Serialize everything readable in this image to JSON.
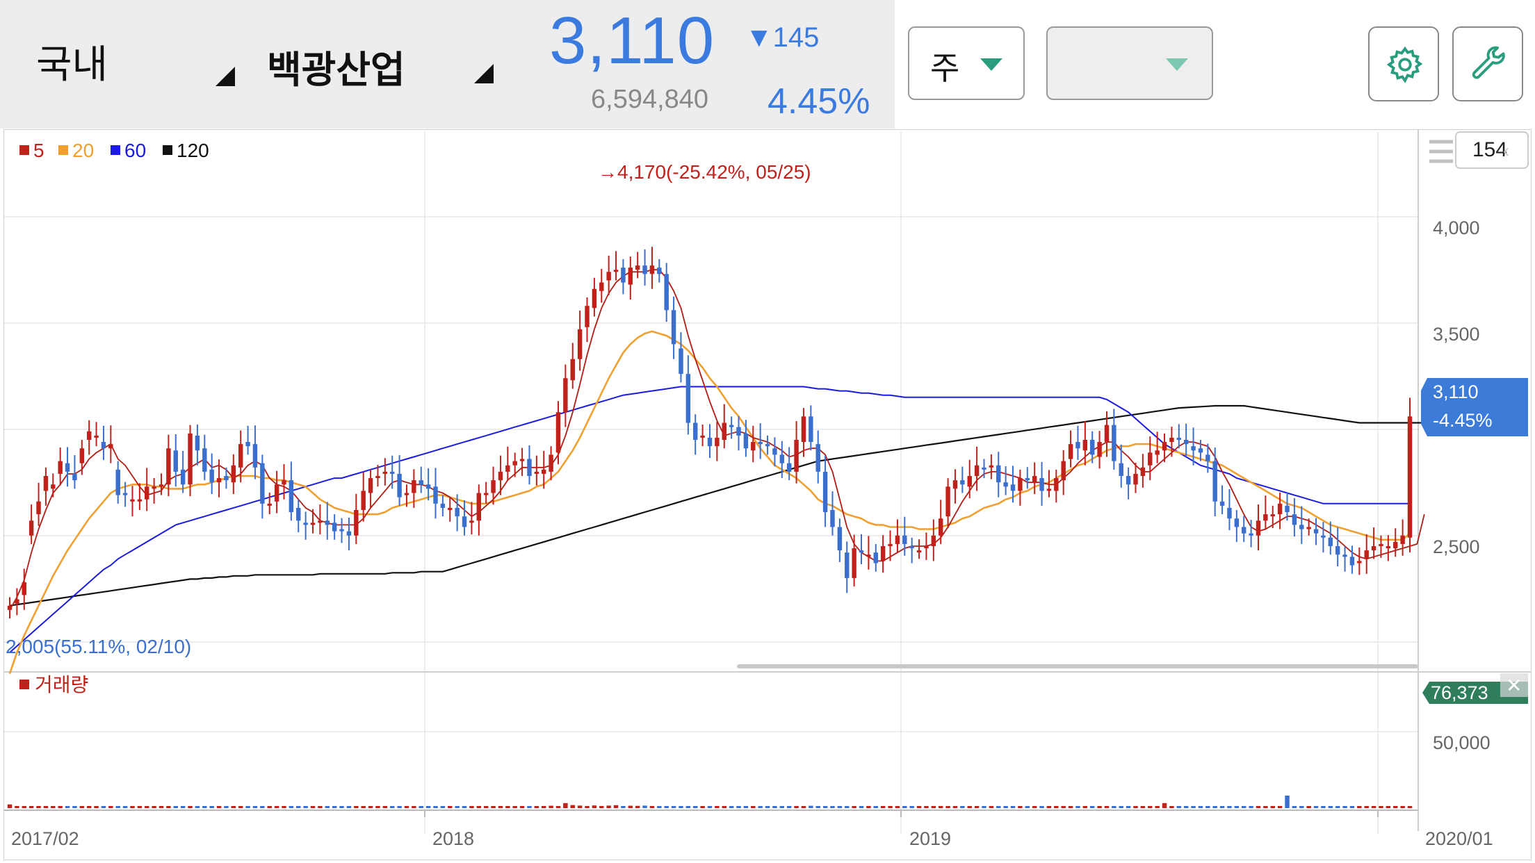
{
  "header": {
    "market": "국내",
    "stock_name": "백광산업",
    "price": "3,110",
    "change": "▼145",
    "volume": "6,594,840",
    "change_pct": "4.45%"
  },
  "controls": {
    "period_label": "주",
    "second_dropdown_label": "",
    "settings_icon": "gear-icon",
    "tools_icon": "wrench-icon",
    "count_box": "154"
  },
  "colors": {
    "up": "#c0221b",
    "down": "#3a6fce",
    "ma5": "#b11c14",
    "ma20": "#f0a030",
    "ma60": "#1a1ae0",
    "ma120": "#111111",
    "accent": "#3b7be0",
    "current_price_tag": "#3c7bd8",
    "volume_tag": "#2e7d5b"
  },
  "chart_data": {
    "type": "candlestick",
    "legend": [
      {
        "name": "5",
        "color": "#c0221b"
      },
      {
        "name": "20",
        "color": "#f0a030"
      },
      {
        "name": "60",
        "color": "#1a1ae0"
      },
      {
        "name": "120",
        "color": "#111111"
      }
    ],
    "price_axis_ticks": [
      "4,000",
      "3,500",
      "2,500"
    ],
    "time_axis_ticks": [
      "2017/02",
      "2018",
      "2019",
      "2020/01"
    ],
    "high_annotation": "4,170(-25.42%, 05/25)",
    "low_annotation": "2,005(55.11%, 02/10)",
    "current_price_tag": "3,110",
    "current_change_tag": "-4.45%",
    "volume_legend": "거래량",
    "volume_axis_ticks": [
      "50,000"
    ],
    "volume_tag": "76,373",
    "closes": [
      2220,
      2250,
      2330,
      2620,
      2710,
      2830,
      2790,
      2900,
      2850,
      2810,
      2960,
      3040,
      3020,
      2960,
      2980,
      2740,
      2740,
      2720,
      2720,
      2780,
      2780,
      2790,
      2960,
      2850,
      2790,
      3030,
      2950,
      2850,
      2800,
      2820,
      2810,
      2880,
      2980,
      2970,
      2870,
      2700,
      2700,
      2790,
      2810,
      2660,
      2620,
      2600,
      2610,
      2620,
      2600,
      2570,
      2570,
      2550,
      2670,
      2760,
      2820,
      2830,
      2850,
      2840,
      2730,
      2750,
      2810,
      2790,
      2770,
      2700,
      2680,
      2680,
      2640,
      2590,
      2620,
      2750,
      2750,
      2810,
      2850,
      2880,
      2900,
      2910,
      2830,
      2850,
      2860,
      2930,
      3130,
      3290,
      3380,
      3520,
      3630,
      3710,
      3740,
      3790,
      3800,
      3740,
      3810,
      3820,
      3780,
      3820,
      3780,
      3610,
      3450,
      3310,
      3080,
      3000,
      3020,
      2970,
      3010,
      3080,
      3060,
      3020,
      2960,
      2990,
      2980,
      2970,
      2930,
      2890,
      2850,
      3000,
      3110,
      2990,
      2850,
      2660,
      2590,
      2480,
      2350,
      2490,
      2470,
      2460,
      2420,
      2500,
      2510,
      2550,
      2510,
      2490,
      2480,
      2500,
      2550,
      2630,
      2780,
      2810,
      2790,
      2830,
      2880,
      2860,
      2880,
      2800,
      2780,
      2760,
      2820,
      2810,
      2830,
      2760,
      2770,
      2820,
      2900,
      2980,
      2960,
      3000,
      2930,
      2990,
      3070,
      2900,
      2830,
      2790,
      2840,
      2870,
      2940,
      2950,
      2990,
      3010,
      3000,
      2980,
      2950,
      2940,
      2900,
      2710,
      2690,
      2630,
      2590,
      2560,
      2550,
      2620,
      2650,
      2650,
      2700,
      2660,
      2600,
      2580,
      2590,
      2560,
      2540,
      2500,
      2460,
      2450,
      2410,
      2430,
      2480,
      2500,
      2510,
      2500,
      2520,
      2550,
      3110
    ],
    "opens": [
      2200,
      2230,
      2270,
      2550,
      2650,
      2760,
      2770,
      2840,
      2890,
      2840,
      2890,
      3000,
      3010,
      2990,
      2960,
      2860,
      2750,
      2710,
      2710,
      2720,
      2770,
      2780,
      2790,
      2950,
      2860,
      2790,
      3020,
      2960,
      2860,
      2800,
      2830,
      2800,
      2870,
      2990,
      2980,
      2890,
      2690,
      2710,
      2790,
      2810,
      2680,
      2610,
      2600,
      2610,
      2620,
      2610,
      2580,
      2570,
      2550,
      2670,
      2750,
      2820,
      2840,
      2850,
      2840,
      2740,
      2750,
      2810,
      2790,
      2780,
      2700,
      2670,
      2680,
      2640,
      2610,
      2620,
      2740,
      2750,
      2810,
      2850,
      2880,
      2900,
      2910,
      2840,
      2840,
      2850,
      2940,
      3130,
      3280,
      3380,
      3530,
      3620,
      3700,
      3750,
      3790,
      3810,
      3730,
      3800,
      3820,
      3780,
      3810,
      3780,
      3610,
      3430,
      3310,
      3080,
      3010,
      3010,
      2970,
      3000,
      3070,
      3060,
      3030,
      2950,
      2990,
      2980,
      2960,
      2930,
      2890,
      2850,
      2990,
      3110,
      2980,
      2850,
      2670,
      2590,
      2470,
      2350,
      2480,
      2460,
      2470,
      2430,
      2500,
      2510,
      2550,
      2500,
      2480,
      2490,
      2500,
      2550,
      2640,
      2770,
      2810,
      2780,
      2830,
      2870,
      2870,
      2880,
      2800,
      2790,
      2760,
      2820,
      2800,
      2820,
      2770,
      2760,
      2810,
      2910,
      2990,
      2950,
      3000,
      2920,
      2990,
      3070,
      2890,
      2830,
      2790,
      2830,
      2880,
      2930,
      2950,
      2990,
      3010,
      3000,
      2970,
      2960,
      2930,
      2900,
      2710,
      2680,
      2630,
      2590,
      2560,
      2550,
      2620,
      2640,
      2650,
      2690,
      2650,
      2600,
      2590,
      2580,
      2550,
      2540,
      2500,
      2460,
      2450,
      2420,
      2440,
      2480,
      2500,
      2500,
      2490,
      2510,
      2540
    ],
    "volume_bars": [
      2800,
      1400,
      1500,
      700,
      600,
      700,
      500,
      900,
      700,
      500,
      600,
      700,
      900,
      800,
      1100,
      1500,
      700,
      800,
      600,
      400,
      600,
      400,
      900,
      500,
      600,
      1100,
      600,
      500,
      700,
      600,
      500,
      400,
      700,
      500,
      800,
      600,
      500,
      800,
      700,
      600,
      600,
      500,
      400,
      500,
      400,
      500,
      500,
      700,
      600,
      400,
      800,
      500,
      600,
      700,
      600,
      400,
      500,
      700,
      600,
      400,
      500,
      700,
      800,
      500,
      600,
      400,
      700,
      600,
      900,
      600,
      500,
      800,
      700,
      500,
      600,
      1800,
      1400,
      3800,
      2300,
      1900,
      1600,
      2000,
      1500,
      1900,
      2200,
      1500,
      1800,
      1700,
      1900,
      1400,
      1200,
      800,
      900,
      1200,
      1000,
      800,
      900,
      700,
      800,
      600,
      1000,
      700,
      500,
      800,
      600,
      700,
      500,
      900,
      600,
      800,
      700,
      1800,
      800,
      700,
      600,
      600,
      900,
      1100,
      800,
      1000,
      700,
      500,
      900,
      600,
      700,
      700,
      500,
      600,
      800,
      700,
      1200,
      900,
      800,
      1000,
      1300,
      700,
      800,
      900,
      600,
      800,
      700,
      900,
      1100,
      600,
      700,
      1000,
      1500,
      900,
      1100,
      1000,
      1200,
      1400,
      1000,
      1200,
      1100,
      900,
      1200,
      1300,
      1200,
      900,
      3800,
      1500,
      800,
      900,
      1600,
      1400,
      1000,
      1200,
      1100,
      900,
      1300,
      1100,
      1200,
      800,
      1000,
      1000,
      1200,
      9500,
      1200,
      900,
      800,
      1000,
      1100,
      900,
      800,
      1000,
      900,
      800,
      1100,
      1000,
      1200,
      1100,
      1000,
      1200,
      1000,
      1100,
      76373
    ],
    "ma5": [
      2200,
      2260,
      2340,
      2470,
      2580,
      2670,
      2750,
      2790,
      2840,
      2840,
      2860,
      2910,
      2940,
      2960,
      2980,
      2910,
      2880,
      2830,
      2780,
      2740,
      2750,
      2760,
      2810,
      2830,
      2840,
      2870,
      2890,
      2910,
      2870,
      2880,
      2860,
      2820,
      2840,
      2880,
      2900,
      2880,
      2820,
      2790,
      2780,
      2760,
      2720,
      2680,
      2660,
      2620,
      2610,
      2600,
      2600,
      2600,
      2600,
      2630,
      2680,
      2720,
      2760,
      2800,
      2810,
      2800,
      2790,
      2790,
      2780,
      2760,
      2750,
      2730,
      2700,
      2670,
      2640,
      2660,
      2690,
      2720,
      2760,
      2810,
      2840,
      2870,
      2870,
      2870,
      2870,
      2880,
      2930,
      3020,
      3130,
      3260,
      3400,
      3520,
      3620,
      3690,
      3740,
      3770,
      3790,
      3790,
      3790,
      3800,
      3800,
      3760,
      3700,
      3620,
      3490,
      3380,
      3280,
      3180,
      3090,
      3020,
      3030,
      3040,
      3030,
      3010,
      3000,
      2990,
      2970,
      2950,
      2920,
      2930,
      2950,
      2960,
      2960,
      2930,
      2850,
      2720,
      2590,
      2510,
      2470,
      2450,
      2430,
      2430,
      2450,
      2470,
      2490,
      2500,
      2500,
      2500,
      2510,
      2540,
      2590,
      2650,
      2710,
      2760,
      2810,
      2840,
      2850,
      2850,
      2840,
      2830,
      2820,
      2800,
      2800,
      2800,
      2790,
      2790,
      2820,
      2850,
      2890,
      2920,
      2950,
      2970,
      2990,
      2990,
      2950,
      2920,
      2880,
      2850,
      2850,
      2880,
      2910,
      2940,
      2970,
      2990,
      2990,
      2980,
      2970,
      2920,
      2850,
      2790,
      2720,
      2650,
      2590,
      2570,
      2580,
      2600,
      2620,
      2640,
      2640,
      2630,
      2620,
      2600,
      2580,
      2560,
      2530,
      2500,
      2470,
      2450,
      2440,
      2450,
      2460,
      2470,
      2480,
      2490,
      2500,
      2510,
      2650
    ],
    "ma20": [
      1900,
      2000,
      2080,
      2150,
      2220,
      2290,
      2360,
      2420,
      2480,
      2530,
      2580,
      2630,
      2670,
      2710,
      2750,
      2770,
      2780,
      2790,
      2790,
      2790,
      2780,
      2780,
      2770,
      2770,
      2770,
      2780,
      2790,
      2790,
      2800,
      2810,
      2820,
      2830,
      2830,
      2830,
      2830,
      2820,
      2820,
      2810,
      2810,
      2800,
      2790,
      2780,
      2750,
      2720,
      2700,
      2680,
      2670,
      2660,
      2650,
      2650,
      2650,
      2650,
      2660,
      2680,
      2690,
      2700,
      2710,
      2720,
      2730,
      2740,
      2740,
      2730,
      2720,
      2710,
      2700,
      2700,
      2700,
      2710,
      2720,
      2730,
      2740,
      2750,
      2760,
      2780,
      2790,
      2820,
      2850,
      2900,
      2950,
      3010,
      3080,
      3150,
      3220,
      3290,
      3350,
      3410,
      3450,
      3480,
      3500,
      3510,
      3500,
      3490,
      3470,
      3450,
      3420,
      3380,
      3340,
      3290,
      3250,
      3200,
      3150,
      3110,
      3060,
      3010,
      2960,
      2920,
      2880,
      2860,
      2840,
      2820,
      2790,
      2760,
      2720,
      2700,
      2690,
      2670,
      2650,
      2640,
      2630,
      2610,
      2600,
      2600,
      2590,
      2590,
      2590,
      2590,
      2580,
      2580,
      2580,
      2590,
      2600,
      2610,
      2630,
      2640,
      2660,
      2680,
      2690,
      2700,
      2720,
      2730,
      2750,
      2760,
      2780,
      2790,
      2800,
      2820,
      2840,
      2860,
      2880,
      2890,
      2910,
      2930,
      2950,
      2960,
      2970,
      2970,
      2980,
      2980,
      2980,
      2970,
      2960,
      2950,
      2940,
      2930,
      2920,
      2910,
      2900,
      2890,
      2880,
      2860,
      2840,
      2820,
      2800,
      2780,
      2760,
      2740,
      2720,
      2700,
      2690,
      2680,
      2660,
      2640,
      2620,
      2600,
      2590,
      2580,
      2570,
      2560,
      2550,
      2540,
      2530,
      2530,
      2530,
      2530,
      2560
    ],
    "ma60": [
      2000,
      2030,
      2060,
      2090,
      2120,
      2150,
      2180,
      2210,
      2240,
      2270,
      2300,
      2330,
      2360,
      2390,
      2410,
      2440,
      2460,
      2480,
      2500,
      2520,
      2540,
      2560,
      2580,
      2600,
      2610,
      2620,
      2630,
      2640,
      2650,
      2660,
      2670,
      2680,
      2690,
      2700,
      2710,
      2720,
      2730,
      2740,
      2750,
      2760,
      2770,
      2780,
      2790,
      2800,
      2810,
      2820,
      2820,
      2830,
      2840,
      2850,
      2860,
      2870,
      2880,
      2890,
      2900,
      2910,
      2920,
      2930,
      2940,
      2950,
      2960,
      2970,
      2980,
      2990,
      3000,
      3010,
      3020,
      3030,
      3040,
      3050,
      3060,
      3070,
      3080,
      3090,
      3100,
      3110,
      3120,
      3130,
      3140,
      3150,
      3160,
      3170,
      3180,
      3190,
      3200,
      3210,
      3215,
      3220,
      3225,
      3230,
      3235,
      3240,
      3245,
      3250,
      3250,
      3250,
      3250,
      3250,
      3250,
      3250,
      3250,
      3250,
      3250,
      3250,
      3250,
      3250,
      3250,
      3250,
      3250,
      3250,
      3250,
      3245,
      3240,
      3240,
      3235,
      3230,
      3230,
      3225,
      3220,
      3220,
      3215,
      3210,
      3210,
      3205,
      3200,
      3200,
      3200,
      3200,
      3200,
      3200,
      3200,
      3200,
      3200,
      3200,
      3200,
      3200,
      3200,
      3200,
      3200,
      3200,
      3200,
      3200,
      3200,
      3200,
      3200,
      3200,
      3200,
      3200,
      3200,
      3200,
      3200,
      3200,
      3190,
      3170,
      3150,
      3130,
      3100,
      3070,
      3040,
      3010,
      2980,
      2960,
      2940,
      2920,
      2900,
      2880,
      2870,
      2860,
      2850,
      2840,
      2820,
      2810,
      2800,
      2790,
      2780,
      2770,
      2760,
      2750,
      2740,
      2730,
      2720,
      2710,
      2700,
      2700,
      2700,
      2700,
      2700,
      2700,
      2700,
      2700,
      2700,
      2700,
      2700,
      2700,
      2700
    ],
    "ma120": [
      2220,
      2225,
      2230,
      2235,
      2240,
      2245,
      2250,
      2255,
      2260,
      2265,
      2270,
      2275,
      2280,
      2285,
      2290,
      2295,
      2300,
      2305,
      2310,
      2315,
      2320,
      2325,
      2330,
      2335,
      2340,
      2345,
      2345,
      2350,
      2350,
      2355,
      2355,
      2360,
      2360,
      2360,
      2365,
      2365,
      2365,
      2365,
      2365,
      2365,
      2365,
      2365,
      2365,
      2370,
      2370,
      2370,
      2370,
      2370,
      2370,
      2370,
      2370,
      2370,
      2370,
      2375,
      2375,
      2375,
      2375,
      2380,
      2380,
      2380,
      2380,
      2390,
      2400,
      2410,
      2420,
      2430,
      2440,
      2450,
      2460,
      2470,
      2480,
      2490,
      2500,
      2510,
      2520,
      2530,
      2540,
      2550,
      2560,
      2570,
      2580,
      2590,
      2600,
      2610,
      2620,
      2630,
      2640,
      2650,
      2660,
      2670,
      2680,
      2690,
      2700,
      2710,
      2720,
      2730,
      2740,
      2750,
      2760,
      2770,
      2780,
      2790,
      2800,
      2810,
      2820,
      2830,
      2840,
      2850,
      2860,
      2870,
      2880,
      2890,
      2900,
      2905,
      2910,
      2915,
      2920,
      2925,
      2930,
      2935,
      2940,
      2945,
      2950,
      2955,
      2960,
      2965,
      2970,
      2975,
      2980,
      2985,
      2990,
      2995,
      3000,
      3005,
      3010,
      3015,
      3020,
      3025,
      3030,
      3035,
      3040,
      3045,
      3050,
      3055,
      3060,
      3065,
      3070,
      3075,
      3080,
      3085,
      3090,
      3095,
      3100,
      3105,
      3110,
      3115,
      3120,
      3125,
      3130,
      3135,
      3140,
      3145,
      3150,
      3152,
      3154,
      3156,
      3158,
      3160,
      3160,
      3160,
      3160,
      3160,
      3155,
      3150,
      3145,
      3140,
      3135,
      3130,
      3125,
      3120,
      3115,
      3110,
      3105,
      3100,
      3095,
      3090,
      3085,
      3080,
      3080,
      3080,
      3080,
      3080,
      3080,
      3080,
      3080,
      3080,
      3080,
      3080,
      3080,
      3080,
      3080
    ]
  }
}
